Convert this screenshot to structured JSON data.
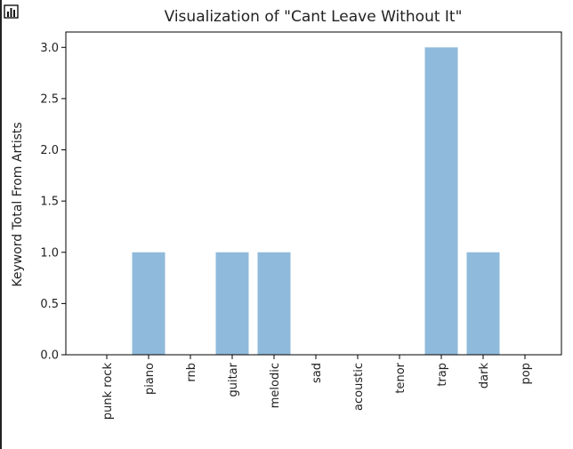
{
  "chart_data": {
    "type": "bar",
    "title": "Visualization of \"Cant Leave Without It\"",
    "xlabel": "",
    "ylabel": "Keyword Total From Artists",
    "categories": [
      "punk rock",
      "piano",
      "rnb",
      "guitar",
      "melodic",
      "sad",
      "acoustic",
      "tenor",
      "trap",
      "dark",
      "pop"
    ],
    "values": [
      0,
      1,
      0,
      1,
      1,
      0,
      0,
      0,
      3,
      1,
      0
    ],
    "ylim": [
      0,
      3.15
    ],
    "yticks": [
      "0.0",
      "0.5",
      "1.0",
      "1.5",
      "2.0",
      "2.5",
      "3.0"
    ],
    "bar_color": "#8fbadb",
    "grid": false
  },
  "toolbar": {
    "icon": "bar-chart-icon"
  }
}
